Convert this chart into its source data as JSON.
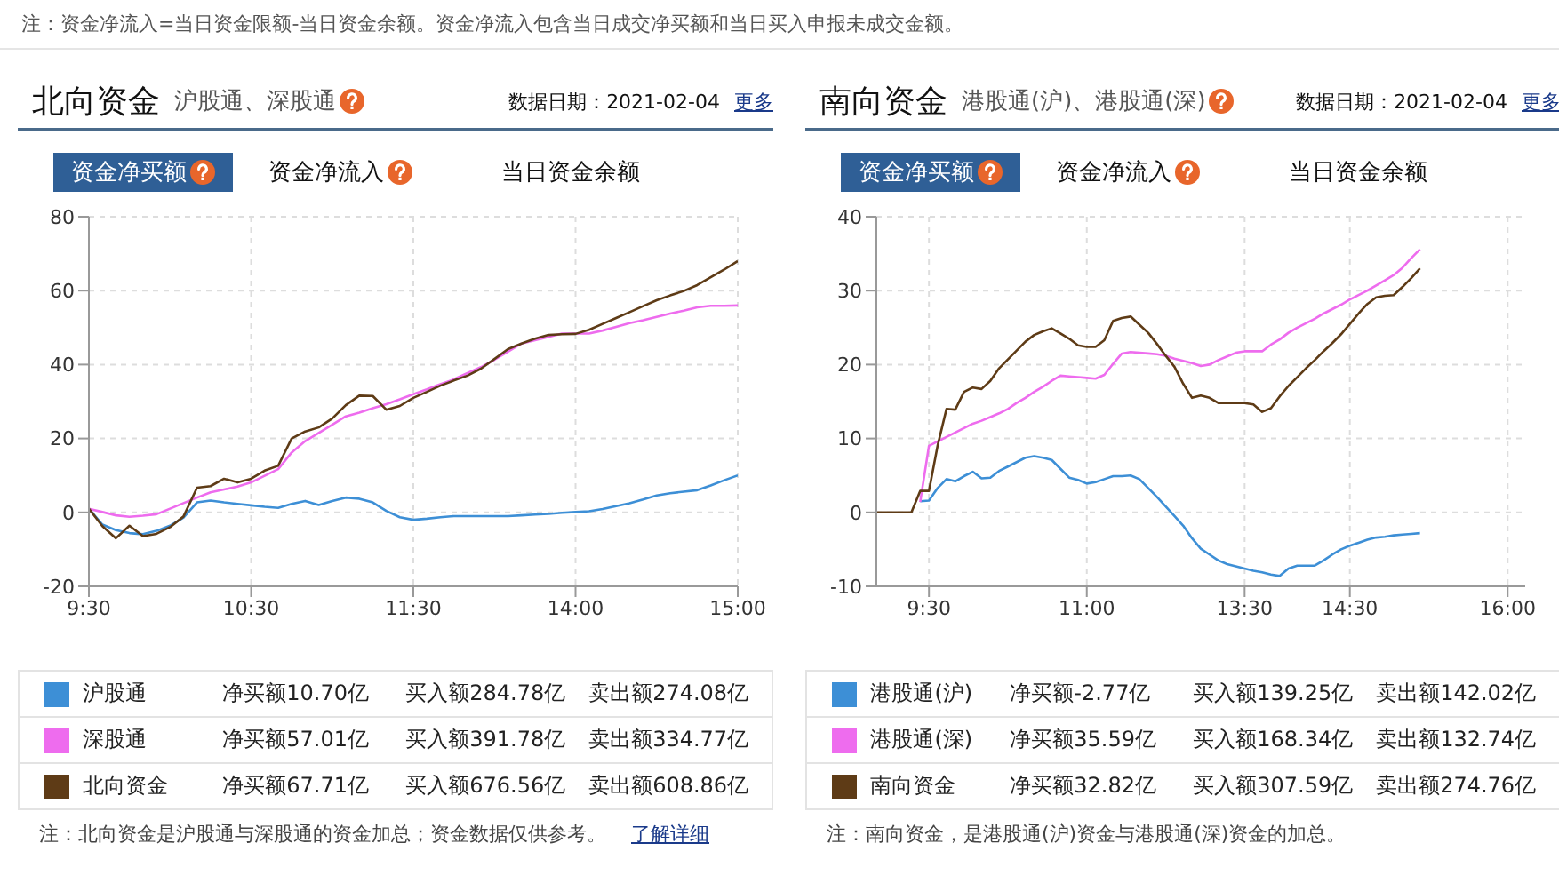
{
  "chart_data": [
    {
      "type": "line",
      "title": "北向资金",
      "subtitle": "沪股通、深股通",
      "legend": "bottom",
      "grid": true,
      "categories": [
        "9:30",
        null,
        null,
        null,
        null,
        null,
        null,
        null,
        null,
        null,
        null,
        null,
        "10:30",
        null,
        null,
        null,
        null,
        null,
        null,
        null,
        null,
        null,
        null,
        null,
        "11:30",
        null,
        null,
        null,
        null,
        null,
        null,
        null,
        null,
        null,
        null,
        null,
        "14:00",
        null,
        null,
        null,
        null,
        null,
        null,
        null,
        null,
        null,
        null,
        null,
        "15:00"
      ],
      "ylim": [
        -20,
        80
      ],
      "yticks": [
        -20,
        0,
        20,
        40,
        60,
        80
      ],
      "annotations": [
        "注：资金净流入=当日资金限额-当日资金余额。资金净流入包含当日成交净买额和当日买入申报未成交金额。",
        "数据日期：2021-02-04",
        "更多",
        "资金净买额",
        "资金净流入",
        "当日资金余额",
        "净买额10.70亿",
        "买入额284.78亿",
        "卖出额274.08亿",
        "净买额57.01亿",
        "买入额391.78亿",
        "卖出额334.77亿",
        "净买额67.71亿",
        "买入额676.56亿",
        "卖出额608.86亿",
        "注：北向资金是沪股通与深股通的资金加总；资金数据仅供参考。",
        "了解详细"
      ],
      "series": [
        {
          "name": "沪股通",
          "color": "#3d8fd6",
          "values": [
            1,
            -3.3,
            -4.8,
            -5.6,
            -5.9,
            -5,
            -3.6,
            -1.4,
            2.7,
            3.2,
            2.7,
            2.3,
            1.9,
            1.5,
            1.2,
            2.3,
            3.1,
            2,
            3.1,
            4,
            3.7,
            2.7,
            0.4,
            -1.3,
            -2,
            -1.7,
            -1.3,
            -1,
            -1,
            -1,
            -1,
            -1,
            -0.8,
            -0.6,
            -0.4,
            -0.1,
            0.1,
            0.3,
            0.9,
            1.7,
            2.5,
            3.5,
            4.6,
            5.2,
            5.6,
            6,
            7.3,
            8.7,
            10
          ]
        },
        {
          "name": "深股通",
          "color": "#ee6cee",
          "values": [
            1,
            0.1,
            -0.8,
            -1.2,
            -0.9,
            -0.5,
            1,
            2.5,
            4,
            5.4,
            6.2,
            7,
            8.1,
            9.9,
            11.7,
            16.2,
            19.3,
            21.5,
            23.7,
            26,
            27,
            28.2,
            29.3,
            30.6,
            32,
            33.3,
            34.7,
            36,
            37.7,
            39.3,
            41.3,
            43.5,
            45.7,
            46.6,
            47.5,
            48.4,
            48.4,
            48.4,
            49.2,
            50.2,
            51.2,
            52,
            52.9,
            53.8,
            54.6,
            55.5,
            55.9,
            55.9,
            56
          ]
        },
        {
          "name": "北向资金",
          "color": "#5e3b16",
          "values": [
            1,
            -3.7,
            -7,
            -3.6,
            -6.4,
            -5.8,
            -4,
            -1.1,
            6.7,
            7.1,
            9.1,
            8.1,
            9.1,
            11.3,
            12.6,
            20,
            21.9,
            23,
            25.4,
            29,
            31.6,
            31.5,
            27.8,
            28.8,
            31,
            32.6,
            34.3,
            35.7,
            37,
            38.9,
            41.5,
            44.2,
            45.7,
            47,
            48,
            48.2,
            48.3,
            49.4,
            51,
            52.6,
            54.2,
            55.8,
            57.4,
            58.7,
            59.9,
            61.5,
            63.6,
            65.7,
            68
          ]
        }
      ]
    },
    {
      "type": "line",
      "title": "南向资金",
      "subtitle": "港股通(沪)、港股通(深)",
      "legend": "bottom",
      "grid": true,
      "categories": [
        null,
        null,
        null,
        null,
        null,
        null,
        "9:30",
        null,
        null,
        null,
        null,
        null,
        null,
        null,
        null,
        null,
        null,
        null,
        null,
        null,
        null,
        null,
        null,
        null,
        "11:00",
        null,
        null,
        null,
        null,
        null,
        null,
        null,
        null,
        null,
        null,
        null,
        null,
        null,
        null,
        null,
        null,
        null,
        "13:30",
        null,
        null,
        null,
        null,
        null,
        null,
        null,
        null,
        null,
        null,
        null,
        "14:30",
        null,
        null,
        null,
        null,
        null,
        null,
        null,
        null,
        null,
        null,
        null,
        null,
        null,
        null,
        null,
        null,
        null,
        "16:00",
        null,
        null
      ],
      "ylim": [
        -10,
        40
      ],
      "yticks": [
        -10,
        0,
        10,
        20,
        30,
        40
      ],
      "annotations": [
        "数据日期：2021-02-04",
        "更多",
        "资金净买额",
        "资金净流入",
        "当日资金余额",
        "净买额-2.77亿",
        "买入额139.25亿",
        "卖出额142.02亿",
        "净买额35.59亿",
        "买入额168.34亿",
        "卖出额132.74亿",
        "净买额32.82亿",
        "买入额307.59亿",
        "卖出额274.76亿",
        "注：南向资金，是港股通(沪)资金与港股通(深)资金的加总。"
      ],
      "series": [
        {
          "name": "港股通(沪)",
          "color": "#3d8fd6",
          "values": [
            null,
            null,
            null,
            null,
            null,
            1.5,
            1.6,
            3.3,
            4.5,
            4.2,
            4.9,
            5.5,
            4.6,
            4.7,
            5.6,
            6.2,
            6.8,
            7.4,
            7.6,
            7.4,
            7.1,
            5.9,
            4.7,
            4.4,
            3.9,
            4.1,
            4.5,
            4.9,
            4.9,
            5,
            4.5,
            3.3,
            2.1,
            0.8,
            -0.5,
            -1.8,
            -3.5,
            -4.9,
            -5.7,
            -6.5,
            -7,
            -7.3,
            -7.6,
            -7.9,
            -8.1,
            -8.4,
            -8.6,
            -7.6,
            -7.2,
            -7.2,
            -7.2,
            -6.5,
            -5.7,
            -5,
            -4.5,
            -4.1,
            -3.7,
            -3.4,
            -3.3,
            -3.1,
            -3,
            -2.9,
            -2.8,
            null,
            null,
            null,
            null,
            null,
            null,
            null,
            null,
            null,
            null,
            null,
            null
          ]
        },
        {
          "name": "港股通(深)",
          "color": "#ee6cee",
          "values": [
            null,
            null,
            null,
            null,
            null,
            1.4,
            9,
            9.6,
            10.2,
            10.8,
            11.4,
            12,
            12.4,
            12.9,
            13.4,
            14,
            14.8,
            15.5,
            16.3,
            17,
            17.8,
            18.5,
            18.4,
            18.3,
            18.2,
            18.1,
            18.6,
            20.1,
            21.5,
            21.7,
            21.6,
            21.5,
            21.4,
            21.2,
            20.8,
            20.5,
            20.2,
            19.8,
            20,
            20.6,
            21.1,
            21.6,
            21.8,
            21.8,
            21.8,
            22.7,
            23.4,
            24.3,
            25,
            25.6,
            26.2,
            26.9,
            27.5,
            28.1,
            28.8,
            29.4,
            30,
            30.7,
            31.4,
            32.1,
            33.1,
            34.4,
            35.6,
            null,
            null,
            null,
            null,
            null,
            null,
            null,
            null,
            null,
            null,
            null,
            null
          ]
        },
        {
          "name": "南向资金",
          "color": "#5e3b16",
          "values": [
            0,
            0,
            0,
            0,
            0,
            2.9,
            2.9,
            9.1,
            14,
            13.9,
            16.3,
            16.9,
            16.7,
            17.8,
            19.5,
            20.7,
            21.9,
            23.1,
            24,
            24.5,
            24.9,
            24.2,
            23.5,
            22.6,
            22.4,
            22.4,
            23.3,
            25.9,
            26.3,
            26.5,
            25.4,
            24.3,
            22.8,
            21.2,
            19.7,
            17.4,
            15.5,
            15.8,
            15.5,
            14.8,
            14.8,
            14.8,
            14.8,
            14.6,
            13.6,
            14.1,
            15.7,
            17.1,
            18.3,
            19.5,
            20.6,
            21.8,
            22.9,
            24.1,
            25.5,
            26.9,
            28.2,
            29.1,
            29.3,
            29.4,
            30.5,
            31.7,
            33,
            null,
            null,
            null,
            null,
            null,
            null,
            null,
            null,
            null,
            null,
            null,
            null
          ]
        }
      ]
    }
  ]
}
